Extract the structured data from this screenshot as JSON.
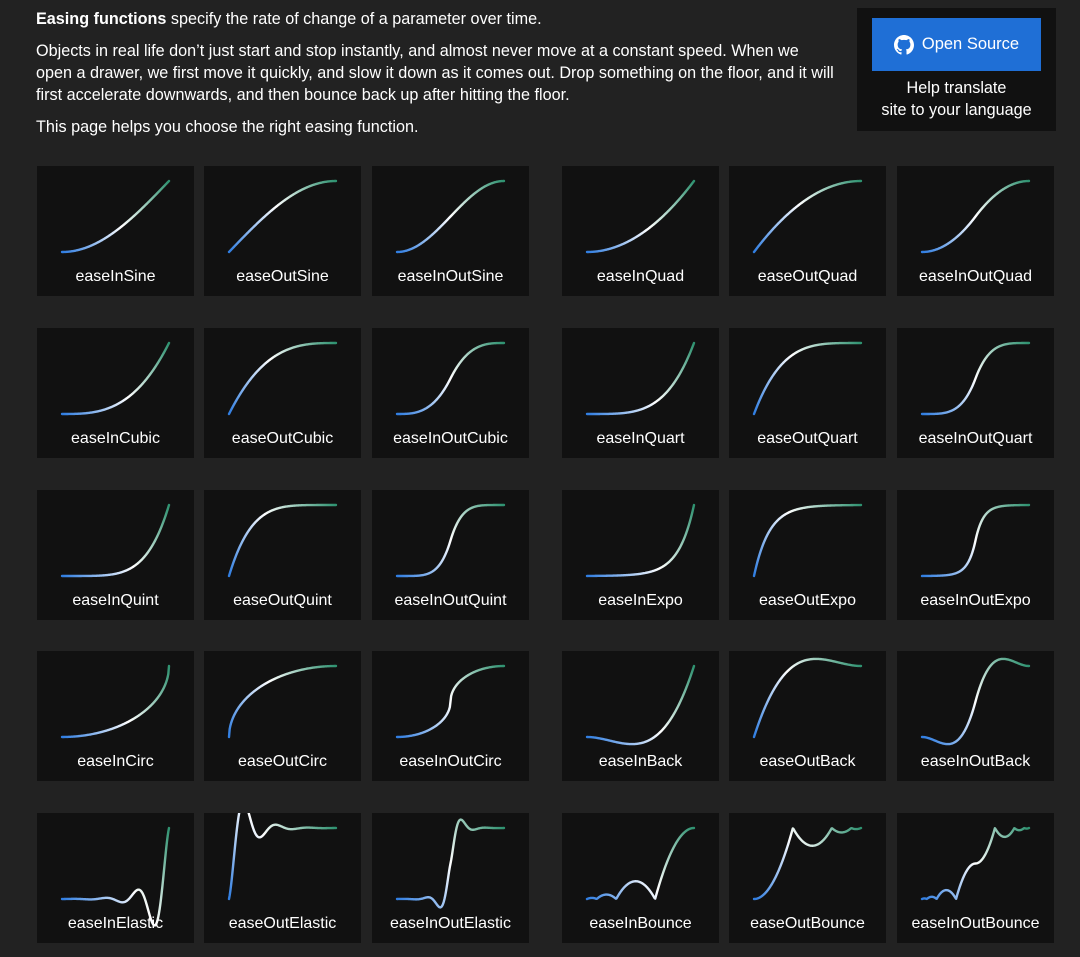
{
  "intro": {
    "lead_bold": "Easing functions",
    "lead_rest": " specify the rate of change of a parameter over time.",
    "paragraph": "Objects in real life don’t just start and stop instantly, and almost never move at a constant speed. When we open a drawer, we first move it quickly, and slow it down as it comes out. Drop something on the floor, and it will first accelerate downwards, and then bounce back up after hitting the floor.",
    "note": "This page helps you choose the right easing function."
  },
  "source": {
    "button_label": "Open Source",
    "icon": "github-icon",
    "help_line1": "Help translate",
    "help_line2": "site to your language"
  },
  "colors": {
    "background": "#222222",
    "card": "#111111",
    "curve_start": "#2f7de1",
    "curve_mid": "#ffffff",
    "curve_end": "#2e9270",
    "button": "#1f6fd6"
  },
  "easings": [
    "easeInSine",
    "easeOutSine",
    "easeInOutSine",
    "easeInQuad",
    "easeOutQuad",
    "easeInOutQuad",
    "easeInCubic",
    "easeOutCubic",
    "easeInOutCubic",
    "easeInQuart",
    "easeOutQuart",
    "easeInOutQuart",
    "easeInQuint",
    "easeOutQuint",
    "easeInOutQuint",
    "easeInExpo",
    "easeOutExpo",
    "easeInOutExpo",
    "easeInCirc",
    "easeOutCirc",
    "easeInOutCirc",
    "easeInBack",
    "easeOutBack",
    "easeInOutBack",
    "easeInElastic",
    "easeOutElastic",
    "easeInOutElastic",
    "easeInBounce",
    "easeOutBounce",
    "easeInOutBounce"
  ]
}
